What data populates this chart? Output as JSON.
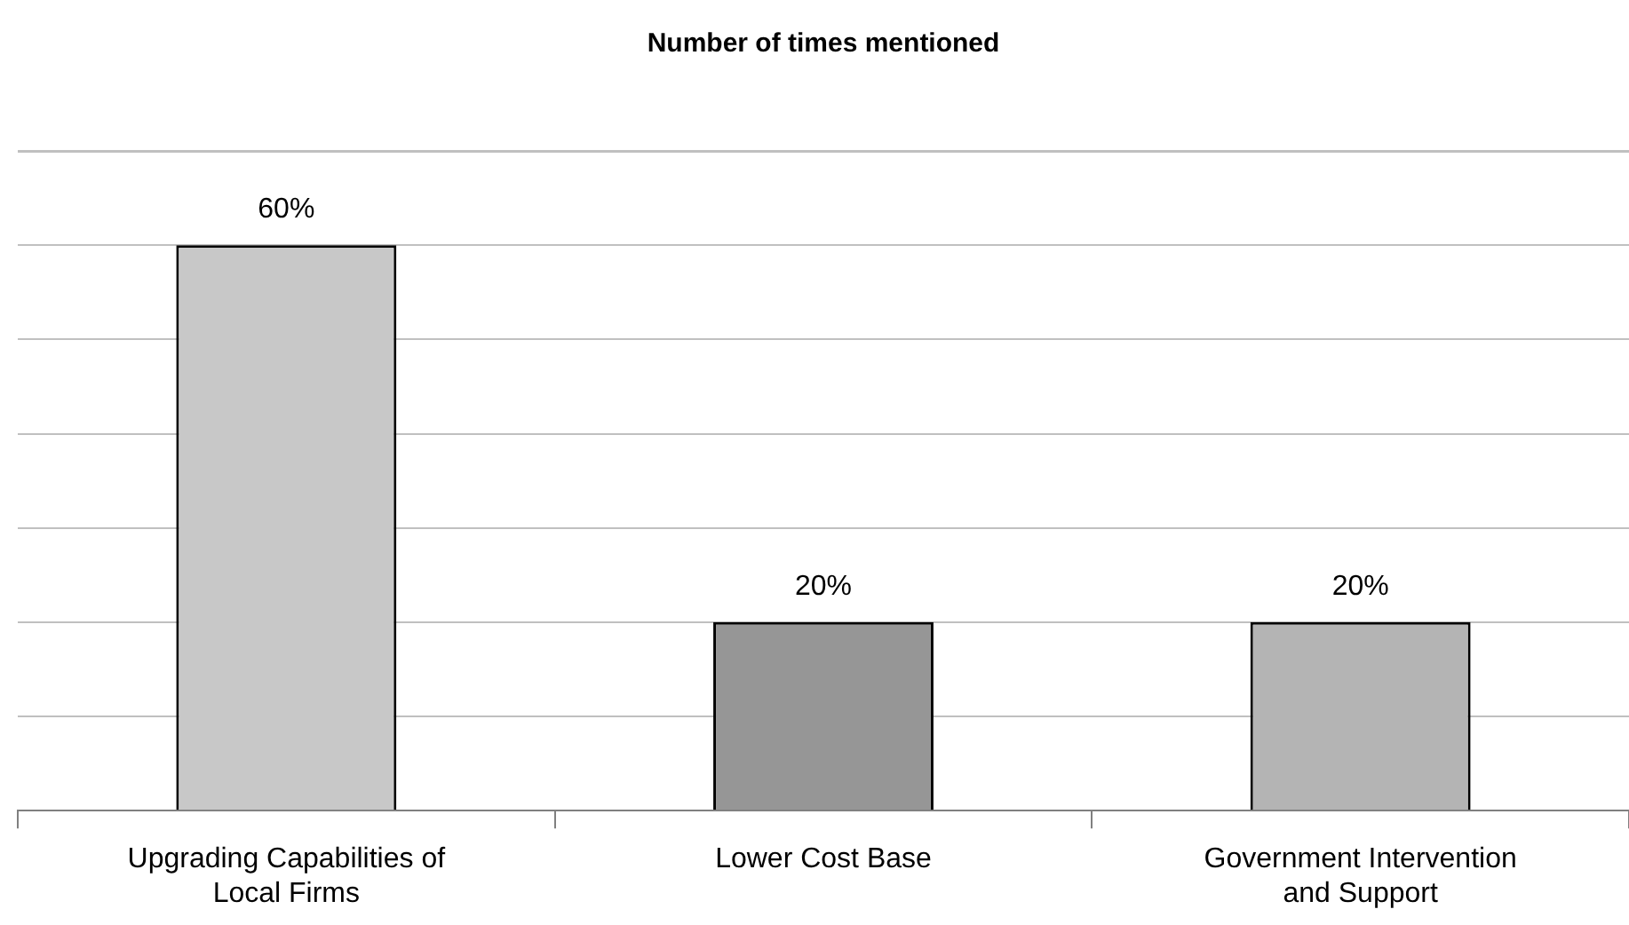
{
  "chart_data": {
    "type": "bar",
    "title": "Number of times mentioned",
    "categories": [
      "Upgrading Capabilities of Local Firms",
      "Lower Cost Base",
      "Government Intervention and Support"
    ],
    "values": [
      60,
      20,
      20
    ],
    "colors": [
      "#c8c8c8",
      "#969696",
      "#b4b4b4"
    ],
    "value_labels": [
      "60%",
      "20%",
      "20%"
    ],
    "ylim": [
      0,
      70
    ],
    "grid": "y",
    "tick_labels": "x",
    "legend": false
  }
}
